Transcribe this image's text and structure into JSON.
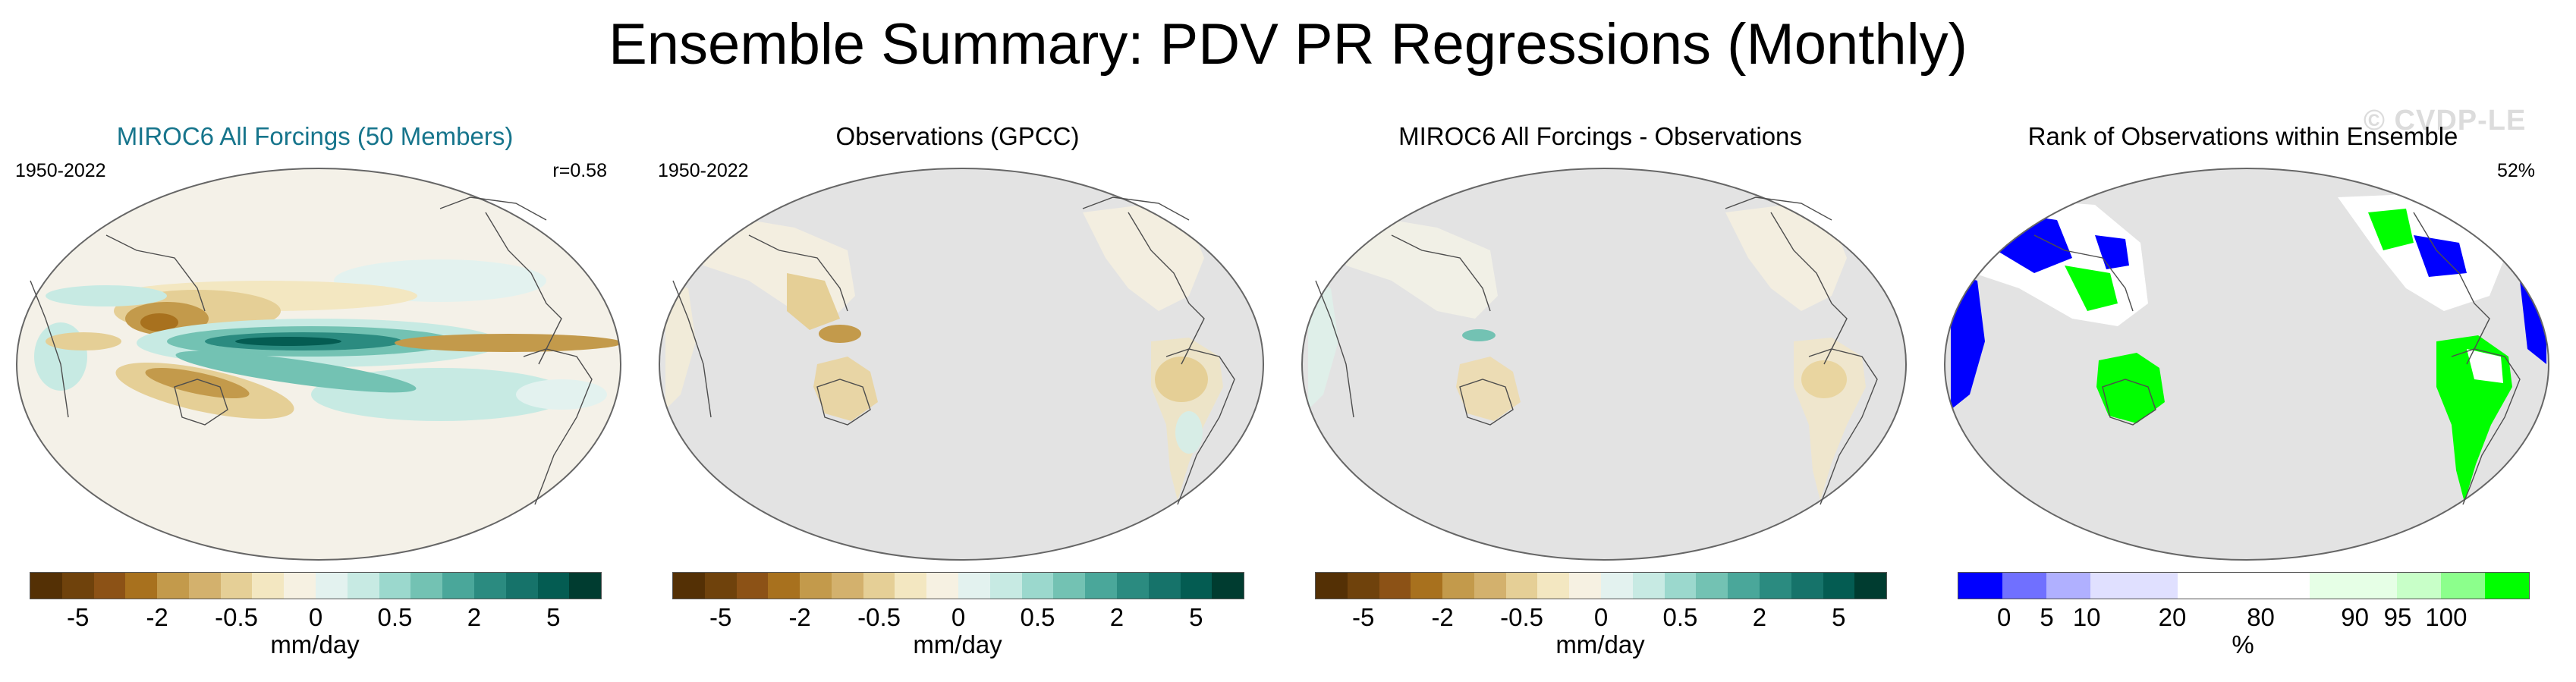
{
  "title": "Ensemble Summary: PDV PR Regressions (Monthly)",
  "watermark": "© CVDP-LE",
  "panels": [
    {
      "title": "MIROC6 All Forcings (50 Members)",
      "years": "1950-2022",
      "stat": "r=0.58",
      "colorbar": {
        "colors": [
          "#543005",
          "#6f420c",
          "#8c5216",
          "#a8711e",
          "#c39a4b",
          "#d3b16d",
          "#e5cf96",
          "#f3e7c1",
          "#f6f1e2",
          "#e3f2ef",
          "#c7eae3",
          "#9bd8cd",
          "#73c2b3",
          "#4aa79a",
          "#2b8b80",
          "#16736a",
          "#045c52",
          "#003c30"
        ],
        "ticks": [
          "-5",
          "-2",
          "-0.5",
          "0",
          "0.5",
          "2",
          "5"
        ],
        "units": "mm/day"
      }
    },
    {
      "title": "Observations (GPCC)",
      "years": "1950-2022",
      "stat": "",
      "colorbar": {
        "colors": [
          "#543005",
          "#6f420c",
          "#8c5216",
          "#a8711e",
          "#c39a4b",
          "#d3b16d",
          "#e5cf96",
          "#f3e7c1",
          "#f6f1e2",
          "#e3f2ef",
          "#c7eae3",
          "#9bd8cd",
          "#73c2b3",
          "#4aa79a",
          "#2b8b80",
          "#16736a",
          "#045c52",
          "#003c30"
        ],
        "ticks": [
          "-5",
          "-2",
          "-0.5",
          "0",
          "0.5",
          "2",
          "5"
        ],
        "units": "mm/day"
      }
    },
    {
      "title": "MIROC6 All Forcings - Observations",
      "years": "",
      "stat": "",
      "colorbar": {
        "colors": [
          "#543005",
          "#6f420c",
          "#8c5216",
          "#a8711e",
          "#c39a4b",
          "#d3b16d",
          "#e5cf96",
          "#f3e7c1",
          "#f6f1e2",
          "#e3f2ef",
          "#c7eae3",
          "#9bd8cd",
          "#73c2b3",
          "#4aa79a",
          "#2b8b80",
          "#16736a",
          "#045c52",
          "#003c30"
        ],
        "ticks": [
          "-5",
          "-2",
          "-0.5",
          "0",
          "0.5",
          "2",
          "5"
        ],
        "units": "mm/day"
      }
    },
    {
      "title": "Rank of Observations within Ensemble",
      "years": "",
      "stat": "52%",
      "colorbar": {
        "colors": [
          "#0000ff",
          "#7070ff",
          "#b0b0ff",
          "#e0e0ff",
          "#e0e0ff",
          "#ffffff",
          "#ffffff",
          "#ffffff",
          "#e6ffe6",
          "#e6ffe6",
          "#c8ffc8",
          "#8cff8c",
          "#00ff00"
        ],
        "ticks": [
          "0",
          "5",
          "10",
          "20",
          "80",
          "90",
          "95",
          "100"
        ],
        "units": "%"
      }
    }
  ]
}
